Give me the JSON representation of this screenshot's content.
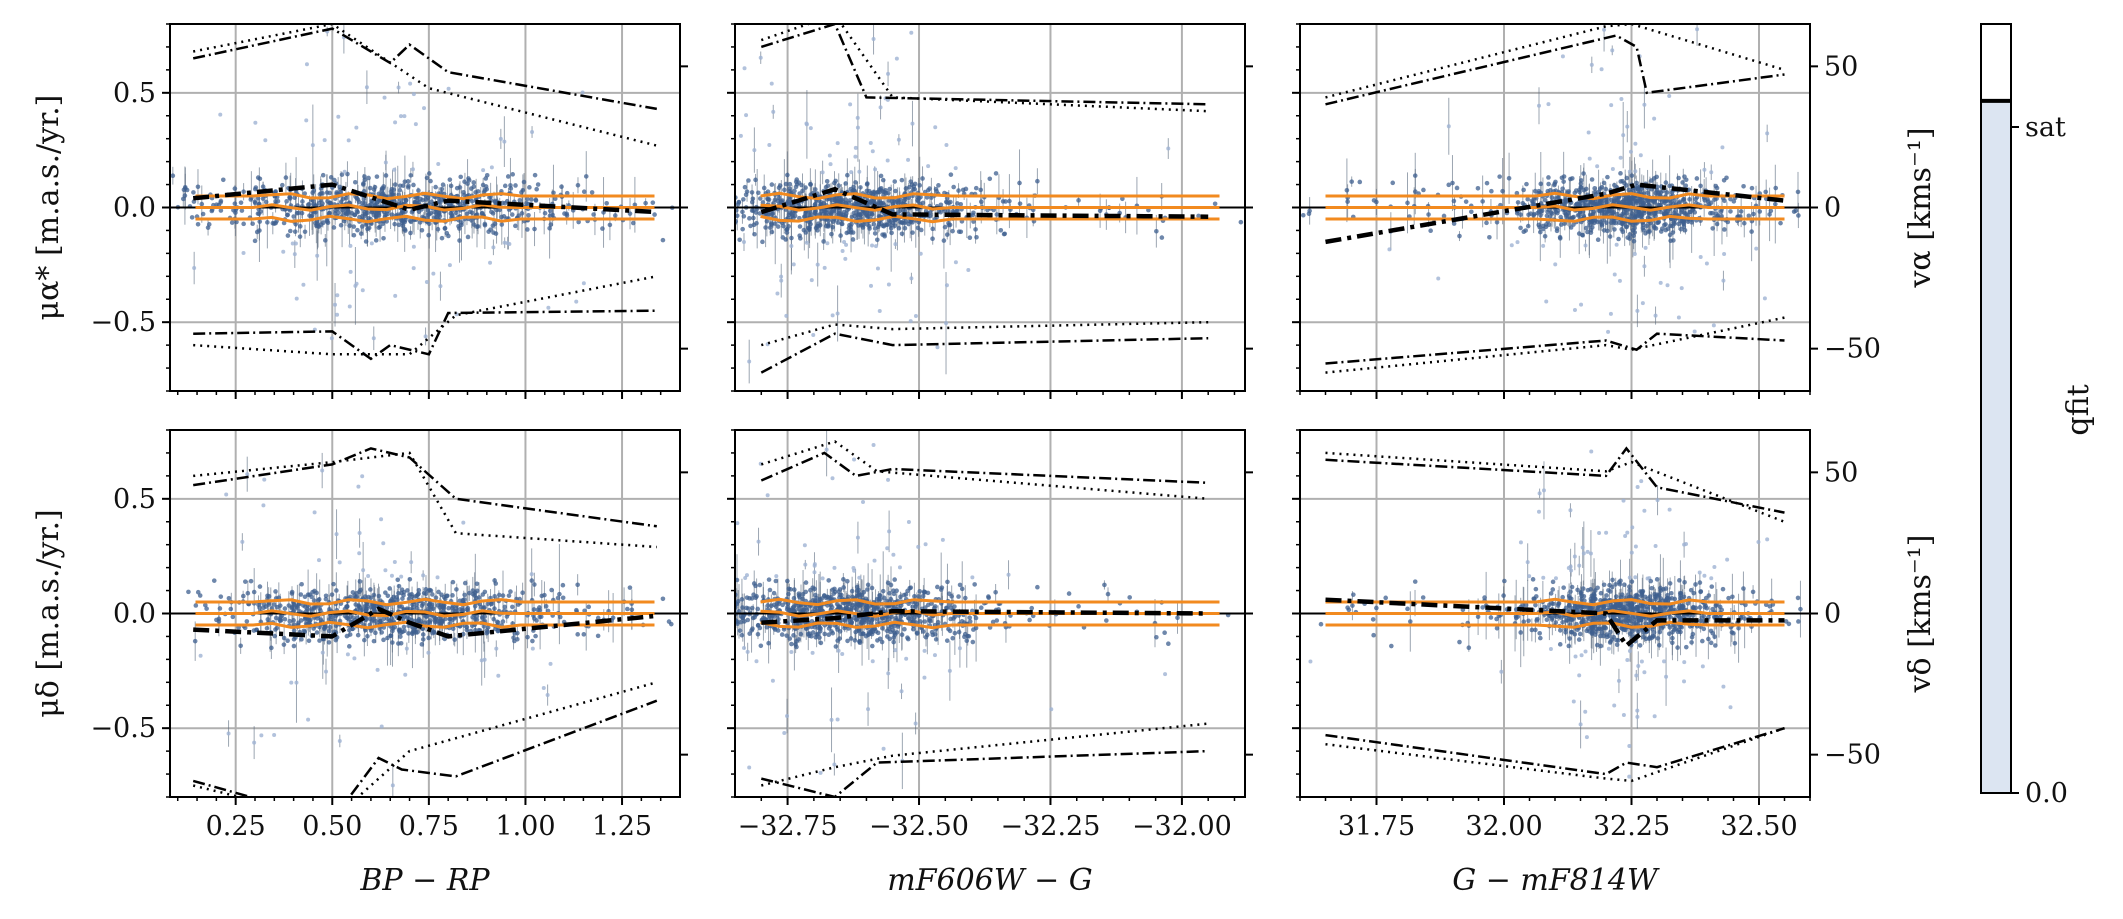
{
  "chart_data": {
    "type": "scatter",
    "description_note": "Six-panel grid of proper-motion residuals vs colour/magnitude differences",
    "left_y_ticks": [
      "0.5",
      "0.0",
      "−0.5"
    ],
    "left_y_values": [
      0.5,
      0.0,
      -0.5
    ],
    "right_y_ticks": [
      "50",
      "0",
      "−50"
    ],
    "right_y_values": [
      50,
      0,
      -50
    ],
    "ylim": [
      -0.8,
      0.8
    ],
    "right_ylim": [
      -65,
      65
    ],
    "row_ylabels": [
      "μα* [m.a.s./yr.]",
      "μδ [m.a.s./yr.]"
    ],
    "row_right_labels": [
      "vα [kms⁻¹]",
      "vδ [kms⁻¹]"
    ],
    "columns": [
      {
        "xlabel": "BP − RP",
        "xlim": [
          0.08,
          1.4
        ],
        "xticks": [
          0.25,
          0.5,
          0.75,
          1.0,
          1.25
        ],
        "xtick_labels": [
          "0.25",
          "0.50",
          "0.75",
          "1.00",
          "1.25"
        ],
        "cloud_center": 0.65,
        "cloud_width": 0.22,
        "dotted_upper": [
          [
            0.14,
            0.68
          ],
          [
            0.5,
            0.8
          ],
          [
            0.75,
            0.52
          ],
          [
            1.34,
            0.27
          ]
        ],
        "dotted_lower": [
          [
            0.14,
            -0.6
          ],
          [
            0.5,
            -0.64
          ],
          [
            0.7,
            -0.64
          ],
          [
            0.82,
            -0.47
          ],
          [
            1.34,
            -0.3
          ]
        ],
        "dashdot_upper": [
          [
            0.14,
            0.65
          ],
          [
            0.5,
            0.78
          ],
          [
            0.65,
            0.63
          ],
          [
            0.7,
            0.71
          ],
          [
            0.8,
            0.59
          ],
          [
            1.34,
            0.43
          ]
        ],
        "dashdot_lower": [
          [
            0.14,
            -0.55
          ],
          [
            0.5,
            -0.54
          ],
          [
            0.6,
            -0.66
          ],
          [
            0.65,
            -0.6
          ],
          [
            0.75,
            -0.64
          ],
          [
            0.8,
            -0.46
          ],
          [
            1.34,
            -0.45
          ]
        ],
        "thick_dashdot": [
          [
            0.14,
            0.04
          ],
          [
            0.5,
            0.1
          ],
          [
            0.7,
            -0.01
          ],
          [
            0.8,
            0.03
          ],
          [
            1.34,
            -0.02
          ]
        ],
        "row2_dotted_upper": [
          [
            0.14,
            0.6
          ],
          [
            0.5,
            0.66
          ],
          [
            0.7,
            0.7
          ],
          [
            0.82,
            0.35
          ],
          [
            1.34,
            0.29
          ]
        ],
        "row2_dotted_lower": [
          [
            0.14,
            -0.75
          ],
          [
            0.5,
            -0.9
          ],
          [
            0.7,
            -0.6
          ],
          [
            1.34,
            -0.3
          ]
        ],
        "row2_dashdot_upper": [
          [
            0.14,
            0.56
          ],
          [
            0.5,
            0.65
          ],
          [
            0.6,
            0.72
          ],
          [
            0.7,
            0.68
          ],
          [
            0.82,
            0.5
          ],
          [
            1.34,
            0.38
          ]
        ],
        "row2_dashdot_lower": [
          [
            0.14,
            -0.73
          ],
          [
            0.5,
            -0.9
          ],
          [
            0.62,
            -0.63
          ],
          [
            0.68,
            -0.68
          ],
          [
            0.82,
            -0.71
          ],
          [
            1.34,
            -0.38
          ]
        ],
        "row2_thick_dashdot": [
          [
            0.14,
            -0.07
          ],
          [
            0.5,
            -0.1
          ],
          [
            0.62,
            0.02
          ],
          [
            0.7,
            -0.04
          ],
          [
            0.8,
            -0.1
          ],
          [
            1.34,
            -0.01
          ]
        ]
      },
      {
        "xlabel": "mF606W − G",
        "xlim": [
          -32.85,
          -31.88
        ],
        "xticks": [
          -32.75,
          -32.5,
          -32.25,
          -32.0
        ],
        "xtick_labels": [
          "−32.75",
          "−32.50",
          "−32.25",
          "−32.00"
        ],
        "cloud_center": -32.63,
        "cloud_width": 0.12,
        "dotted_upper": [
          [
            -32.8,
            0.73
          ],
          [
            -32.66,
            0.84
          ],
          [
            -32.55,
            0.48
          ],
          [
            -31.95,
            0.42
          ]
        ],
        "dotted_lower": [
          [
            -32.8,
            -0.6
          ],
          [
            -32.66,
            -0.51
          ],
          [
            -32.55,
            -0.53
          ],
          [
            -31.95,
            -0.5
          ]
        ],
        "dashdot_upper": [
          [
            -32.8,
            0.7
          ],
          [
            -32.66,
            0.8
          ],
          [
            -32.6,
            0.48
          ],
          [
            -31.95,
            0.45
          ]
        ],
        "dashdot_lower": [
          [
            -32.8,
            -0.72
          ],
          [
            -32.66,
            -0.55
          ],
          [
            -32.55,
            -0.6
          ],
          [
            -31.95,
            -0.57
          ]
        ],
        "thick_dashdot": [
          [
            -32.8,
            -0.02
          ],
          [
            -32.66,
            0.08
          ],
          [
            -32.55,
            -0.03
          ],
          [
            -31.95,
            -0.04
          ]
        ],
        "row2_dotted_upper": [
          [
            -32.8,
            0.65
          ],
          [
            -32.66,
            0.75
          ],
          [
            -32.58,
            0.62
          ],
          [
            -31.95,
            0.5
          ]
        ],
        "row2_dotted_lower": [
          [
            -32.8,
            -0.75
          ],
          [
            -32.66,
            -0.67
          ],
          [
            -32.55,
            -0.62
          ],
          [
            -31.95,
            -0.48
          ]
        ],
        "row2_dashdot_upper": [
          [
            -32.8,
            0.58
          ],
          [
            -32.68,
            0.7
          ],
          [
            -32.62,
            0.6
          ],
          [
            -32.55,
            0.63
          ],
          [
            -31.95,
            0.57
          ]
        ],
        "row2_dashdot_lower": [
          [
            -32.8,
            -0.72
          ],
          [
            -32.66,
            -0.8
          ],
          [
            -32.58,
            -0.65
          ],
          [
            -31.95,
            -0.6
          ]
        ],
        "row2_thick_dashdot": [
          [
            -32.8,
            -0.04
          ],
          [
            -32.66,
            -0.02
          ],
          [
            -32.55,
            0.01
          ],
          [
            -31.95,
            0.0
          ]
        ]
      },
      {
        "xlabel": "G − mF814W",
        "xlim": [
          31.6,
          32.6
        ],
        "xticks": [
          31.75,
          32.0,
          32.25,
          32.5
        ],
        "xtick_labels": [
          "31.75",
          "32.00",
          "32.25",
          "32.50"
        ],
        "cloud_center": 32.24,
        "cloud_width": 0.1,
        "dotted_upper": [
          [
            31.65,
            0.48
          ],
          [
            32.2,
            0.79
          ],
          [
            32.25,
            0.8
          ],
          [
            32.55,
            0.6
          ]
        ],
        "dotted_lower": [
          [
            31.65,
            -0.72
          ],
          [
            32.2,
            -0.6
          ],
          [
            32.25,
            -0.62
          ],
          [
            32.55,
            -0.48
          ]
        ],
        "dashdot_upper": [
          [
            31.65,
            0.45
          ],
          [
            32.22,
            0.75
          ],
          [
            32.26,
            0.7
          ],
          [
            32.28,
            0.5
          ],
          [
            32.55,
            0.58
          ]
        ],
        "dashdot_lower": [
          [
            31.65,
            -0.68
          ],
          [
            32.2,
            -0.58
          ],
          [
            32.26,
            -0.62
          ],
          [
            32.3,
            -0.55
          ],
          [
            32.55,
            -0.58
          ]
        ],
        "thick_dashdot": [
          [
            31.65,
            -0.15
          ],
          [
            32.2,
            0.06
          ],
          [
            32.26,
            0.1
          ],
          [
            32.55,
            0.03
          ]
        ],
        "row2_dotted_upper": [
          [
            31.65,
            0.7
          ],
          [
            32.2,
            0.62
          ],
          [
            32.25,
            0.66
          ],
          [
            32.55,
            0.4
          ]
        ],
        "row2_dotted_lower": [
          [
            31.65,
            -0.57
          ],
          [
            32.2,
            -0.72
          ],
          [
            32.25,
            -0.73
          ],
          [
            32.55,
            -0.5
          ]
        ],
        "row2_dashdot_upper": [
          [
            31.65,
            0.67
          ],
          [
            32.2,
            0.6
          ],
          [
            32.24,
            0.72
          ],
          [
            32.3,
            0.55
          ],
          [
            32.55,
            0.44
          ]
        ],
        "row2_dashdot_lower": [
          [
            31.65,
            -0.53
          ],
          [
            32.2,
            -0.7
          ],
          [
            32.24,
            -0.65
          ],
          [
            32.3,
            -0.67
          ],
          [
            32.55,
            -0.5
          ]
        ],
        "row2_thick_dashdot": [
          [
            31.65,
            0.06
          ],
          [
            32.2,
            0.0
          ],
          [
            32.24,
            -0.14
          ],
          [
            32.3,
            -0.03
          ],
          [
            32.55,
            -0.03
          ]
        ]
      }
    ],
    "orange_lines": [
      0.05,
      0.0,
      -0.05
    ],
    "colorbar": {
      "label": "qfit",
      "tick_labels": [
        "sat",
        "0.0"
      ],
      "sat_value": 0.9,
      "range": [
        0.0,
        1.0
      ]
    },
    "colors": {
      "scatter": "#3e5f8f",
      "scatter_light": "#9fb3d3",
      "orange": "#f28a1f",
      "grid": "#b0b0b0",
      "colorbar_fill": "#dce5f2",
      "black": "#000000"
    }
  }
}
